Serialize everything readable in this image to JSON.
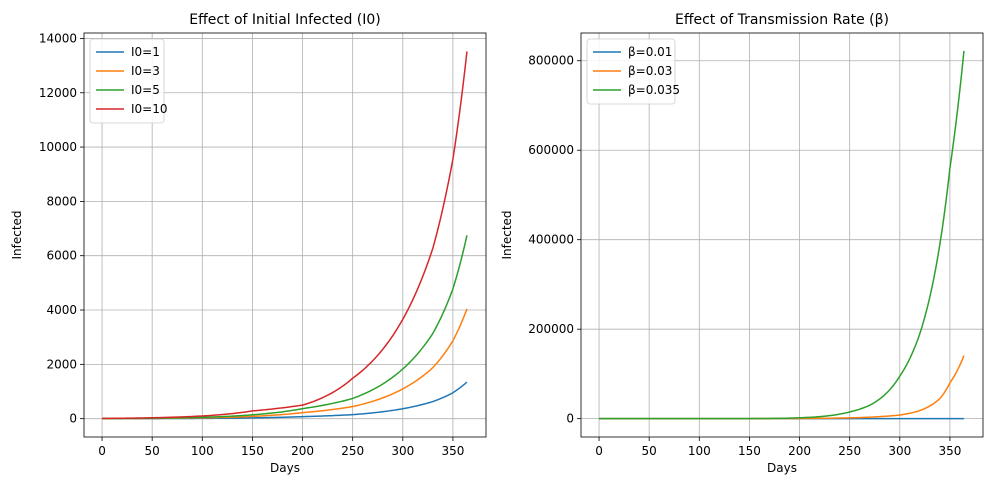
{
  "chart_data": [
    {
      "type": "line",
      "title": "Effect of Initial Infected (I0)",
      "xlabel": "Days",
      "ylabel": "Infected",
      "xlim": [
        -18,
        383
      ],
      "ylim": [
        -675,
        14200
      ],
      "xticks": [
        0,
        50,
        100,
        150,
        200,
        250,
        300,
        350
      ],
      "yticks": [
        0,
        2000,
        4000,
        6000,
        8000,
        10000,
        12000,
        14000
      ],
      "grid": true,
      "legend": "top-left",
      "x": [
        0,
        50,
        100,
        150,
        200,
        250,
        300,
        330,
        350,
        364
      ],
      "series": [
        {
          "name": "I0=1",
          "color": "#1f77b4",
          "values": [
            1,
            3,
            10,
            30,
            74,
            149,
            366,
            630,
            955,
            1350
          ]
        },
        {
          "name": "I0=3",
          "color": "#ff7f0e",
          "values": [
            3,
            10,
            30,
            85,
            222,
            446,
            1097,
            1880,
            2870,
            4040
          ]
        },
        {
          "name": "I0=5",
          "color": "#2ca02c",
          "values": [
            5,
            17,
            50,
            142,
            370,
            744,
            1830,
            3140,
            4780,
            6750
          ]
        },
        {
          "name": "I0=10",
          "color": "#d62728",
          "values": [
            10,
            34,
            100,
            285,
            500,
            1488,
            3660,
            6280,
            9560,
            13520
          ]
        }
      ]
    },
    {
      "type": "line",
      "title": "Effect of Transmission Rate (β)",
      "xlabel": "Days",
      "ylabel": "Infected",
      "xlim": [
        -18,
        383
      ],
      "ylim": [
        -41000,
        862000
      ],
      "xticks": [
        0,
        50,
        100,
        150,
        200,
        250,
        300,
        350
      ],
      "yticks": [
        0,
        200000,
        400000,
        600000,
        800000
      ],
      "grid": true,
      "legend": "top-left",
      "x": [
        0,
        50,
        100,
        150,
        200,
        250,
        270,
        300,
        320,
        340,
        350,
        364
      ],
      "series": [
        {
          "name": "β=0.01",
          "color": "#1f77b4",
          "values": [
            1,
            2,
            3,
            5,
            7,
            12,
            15,
            20,
            24,
            30,
            33,
            38
          ]
        },
        {
          "name": "β=0.03",
          "color": "#ff7f0e",
          "values": [
            1,
            5,
            20,
            90,
            400,
            1800,
            3300,
            8100,
            18000,
            45000,
            80000,
            141000
          ]
        },
        {
          "name": "β=0.035",
          "color": "#2ca02c",
          "values": [
            1,
            6,
            33,
            190,
            2000,
            15000,
            30000,
            95000,
            190000,
            390000,
            560000,
            822000
          ]
        }
      ]
    }
  ]
}
